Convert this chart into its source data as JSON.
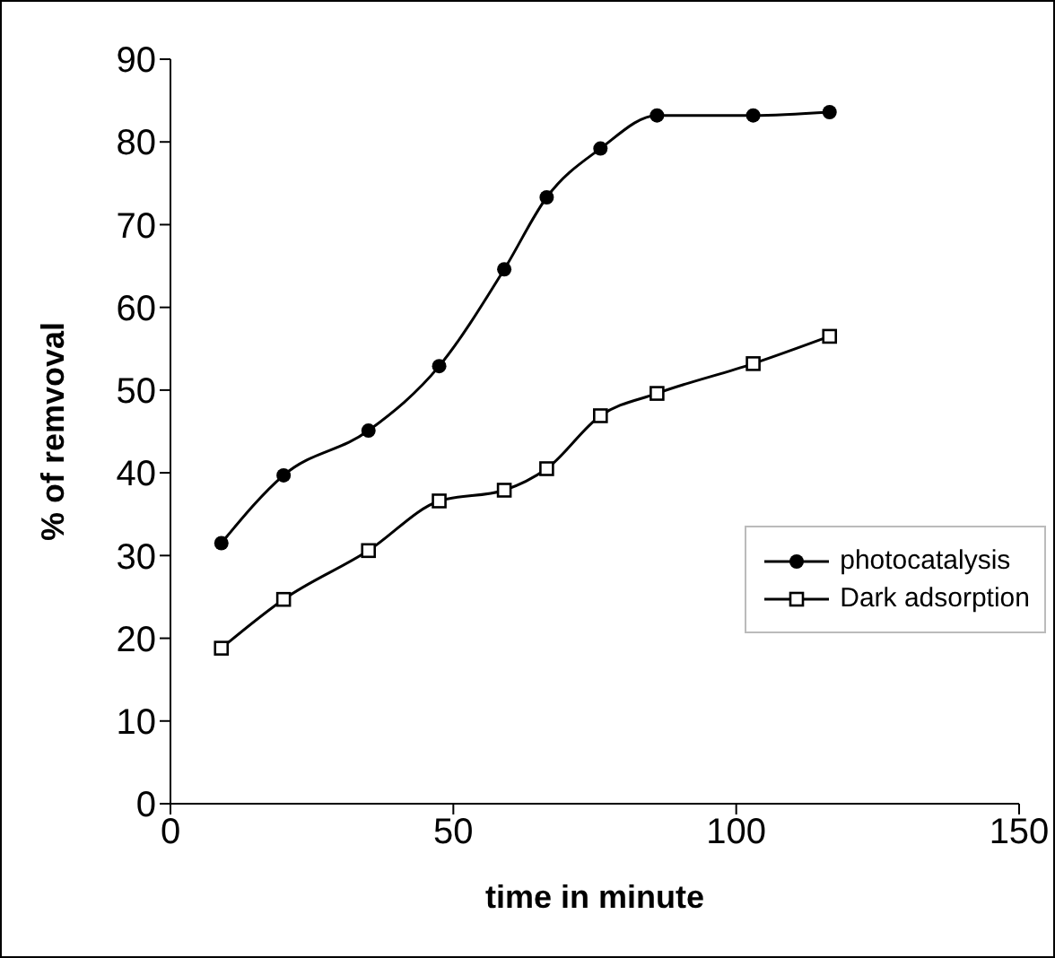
{
  "chart_data": {
    "type": "line",
    "xlabel": "time in minute",
    "ylabel": "% of remvoval",
    "xlim": [
      0,
      150
    ],
    "xticks": [
      0,
      50,
      100,
      150
    ],
    "ylim": [
      0,
      90
    ],
    "yticks": [
      0,
      10,
      20,
      30,
      40,
      50,
      60,
      70,
      80,
      90
    ],
    "grid": false,
    "legend": "right",
    "line_style": "solid",
    "series": [
      {
        "name": "photocatalysis",
        "color": "#000000",
        "marker": "circle",
        "x": [
          9,
          20,
          35,
          47.5,
          59,
          66.5,
          76,
          86,
          103,
          116.5
        ],
        "values": [
          31.5,
          39.7,
          45.1,
          52.9,
          64.6,
          73.3,
          79.2,
          83.2,
          83.2,
          83.6
        ]
      },
      {
        "name": "Dark adsorption",
        "color": "#000000",
        "marker": "square",
        "x": [
          9,
          20,
          35,
          47.5,
          59,
          66.5,
          76,
          86,
          103,
          116.5
        ],
        "values": [
          18.8,
          24.7,
          30.6,
          36.6,
          37.9,
          40.5,
          46.9,
          49.6,
          53.2,
          56.5
        ]
      }
    ]
  }
}
